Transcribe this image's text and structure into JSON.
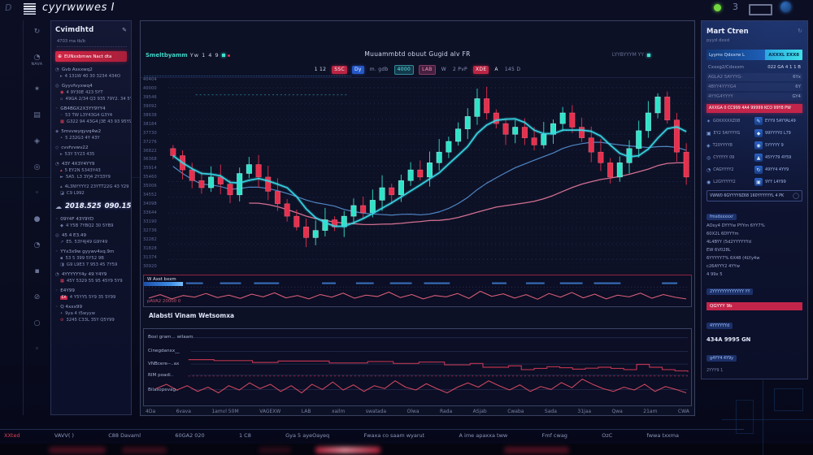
{
  "window": {
    "title": "cyyrwwwes I",
    "corner_glyph": "D",
    "controls": {
      "minimize_glyph": "3"
    }
  },
  "left": {
    "rail_icons": [
      {
        "name": "refresh-icon",
        "glyph": "↻"
      },
      {
        "name": "alert-icon",
        "glyph": "◔",
        "label": "NAVA"
      },
      {
        "name": "spark-icon",
        "glyph": "✶"
      },
      {
        "name": "grid-icon",
        "glyph": "▤"
      },
      {
        "name": "diamond-icon",
        "glyph": "◈"
      },
      {
        "name": "target-icon",
        "glyph": "◎"
      },
      {
        "name": "dot-icon",
        "glyph": "◦"
      },
      {
        "name": "disc-icon",
        "glyph": "●"
      },
      {
        "name": "clock-icon",
        "glyph": "◔"
      },
      {
        "name": "square-icon",
        "glyph": "▪"
      },
      {
        "name": "block-icon",
        "glyph": "⊘"
      },
      {
        "name": "circle-icon",
        "glyph": "○"
      },
      {
        "name": "dot2-icon",
        "glyph": "◦"
      }
    ],
    "panel": {
      "header": "Cvimdhtd",
      "header_icon": "✎",
      "meta": "4703   ma tb/b",
      "notice": {
        "icon": "⊕",
        "text": "EUNxxbmws Nact dta"
      },
      "groups": [
        {
          "icon": "◔",
          "title": "Gvb Asxxwq2",
          "rows": [
            {
              "glyph": "▸",
              "color": "",
              "text": "4 131W  40 30 3234 434O"
            }
          ]
        },
        {
          "icon": "◎",
          "title": "Gyyvfvyxwq4",
          "rows": [
            {
              "glyph": "◉",
              "color": "red",
              "text": "4 9Y30E  423 5YT"
            },
            {
              "glyph": "▫",
              "color": "",
              "text": "49GA 2/34 Q3 935 79Y2. 34 5Y59"
            }
          ]
        },
        {
          "icon": "◦",
          "title": "GB4BGX2X3YY9YY4",
          "rows": [
            {
              "glyph": "◦",
              "color": "",
              "text": "53 TW L3Y43G4 G3Y4"
            },
            {
              "glyph": "▦",
              "color": "red",
              "text": "G322 94 43G4 J3E 43 93 95Y9"
            }
          ]
        },
        {
          "icon": "◈",
          "title": "5mvvwyqyvq4w2",
          "rows": [
            {
              "glyph": "•",
              "color": "",
              "text": "5 232G3   4Y 43Y"
            }
          ]
        },
        {
          "icon": "◇",
          "title": "cvvfvvwv22",
          "rows": [
            {
              "glyph": "▸",
              "color": "",
              "text": "53Y 5Y23 435"
            }
          ]
        },
        {
          "icon": "◔",
          "title": "43Y 4X3Y4YY9",
          "rows": [
            {
              "glyph": "▴",
              "color": "red",
              "text": "5 EY2N  5343Y43"
            },
            {
              "glyph": "►",
              "color": "",
              "text": "5A5. L3 3YJ4 2Y33Y9"
            }
          ]
        },
        {
          "icon": "",
          "title": "",
          "rows": [
            {
              "glyph": "▴",
              "color": "",
              "text": "4L3NYYYY2 23YTT22G 43 Y29"
            },
            {
              "glyph": "◪",
              "color": "",
              "text": "C9  L992"
            }
          ]
        }
      ],
      "totals": {
        "icon_name": "cloud-icon",
        "glyph": "☁",
        "value_a": "2018.525",
        "value_b": "090.156"
      },
      "groups2": [
        {
          "icon": "◦",
          "title": "09Y4F 43Y9YD",
          "rows": [
            {
              "glyph": "◆",
              "color": "",
              "text": "4 Y5B 7YBQ2 30 5YB9"
            }
          ]
        },
        {
          "icon": "◎",
          "title": "45 4 E3.49",
          "rows": [
            {
              "glyph": "↗",
              "color": "",
              "text": "E5. 53Y4J49 G9Y49"
            }
          ]
        },
        {
          "icon": "◦",
          "title": "YYx3x9w gyywv4xq.9m",
          "rows": [
            {
              "glyph": "▪",
              "color": "",
              "text": "53 5 399 5Y52 9B"
            },
            {
              "glyph": "◨",
              "color": "",
              "text": "G9 L9E3 7 953 45 7Y59"
            }
          ]
        },
        {
          "icon": "◔",
          "title": "4YYYYYY4y  49 Y4Y9",
          "rows": [
            {
              "glyph": "▦",
              "color": "red",
              "text": "45Y 5329 55 95 45Y9 5Y9"
            }
          ]
        },
        {
          "icon": "◦",
          "title": "E4Y99",
          "rows": [
            {
              "glyph": "EX",
              "color": "redchip",
              "text": "4 Y5YY5 5Y9 35 5Y99"
            }
          ]
        },
        {
          "icon": "◦",
          "title": "Q 4xxx99",
          "rows": [
            {
              "glyph": "•",
              "color": "",
              "text": "9ya 4 t5wyyw"
            },
            {
              "glyph": "⊘",
              "color": "red",
              "text": "3245 C33L 35Y Q5Y99"
            }
          ]
        }
      ]
    }
  },
  "chart": {
    "header": {
      "pair": "Smeltbyamm",
      "pair_value": "Yw 1 4 9",
      "right_label": "LYYBYYYM YY",
      "title": "Muuammbtd obuut Gugid alv FR"
    },
    "toolbar": [
      {
        "label": "1 12",
        "style": "plain"
      },
      {
        "label": "SSC",
        "style": "red"
      },
      {
        "label": "Dy",
        "style": "blue"
      },
      {
        "label": "m. gdb",
        "style": "dim"
      },
      {
        "label": "4000",
        "style": "teal"
      },
      {
        "label": "LAB",
        "style": "pink"
      },
      {
        "label": "W",
        "style": "dim"
      },
      {
        "label": "2 PvP",
        "style": "dim"
      },
      {
        "label": "XDE",
        "style": "red"
      },
      {
        "label": "A",
        "style": "plain"
      },
      {
        "label": "145 D",
        "style": "dim"
      }
    ],
    "y_ticks": [
      "40404",
      "40000",
      "39546",
      "39092",
      "38638",
      "38184",
      "37730",
      "37276",
      "36822",
      "36368",
      "35914",
      "35460",
      "35006",
      "34552",
      "34098",
      "33644",
      "33190",
      "32736",
      "32282",
      "31828",
      "31374",
      "30920"
    ],
    "x_ticks": [
      "4Da",
      "6vava",
      "1amvl 50M",
      "VAGEXW",
      "LAB",
      "xailm",
      "swatada",
      "Olwa",
      "Rada",
      "ASjab",
      "Cwaba",
      "Sada",
      "31jaa",
      "Qwa",
      "21am",
      "CWA"
    ],
    "closes": [
      60,
      52,
      46,
      42,
      48,
      44,
      38,
      50,
      55,
      48,
      40,
      33,
      26,
      20,
      14,
      18,
      24,
      20,
      26,
      32,
      28,
      35,
      42,
      38,
      46,
      52,
      48,
      56,
      62,
      68,
      75,
      82,
      92,
      84,
      78,
      72,
      76,
      70,
      66,
      72,
      78,
      84,
      76,
      70,
      62,
      56,
      48,
      56,
      64,
      74,
      84,
      93,
      80,
      62,
      48
    ],
    "panel1": {
      "label": "W Axst bxxm",
      "value": "pAVA2 20000 0",
      "osc": [
        0.35,
        0.55,
        0.3,
        0.5,
        0.4,
        0.62,
        0.38,
        0.52,
        0.33,
        0.58,
        0.42,
        0.66,
        0.36,
        0.5,
        0.3,
        0.56,
        0.4,
        0.64,
        0.34,
        0.52,
        0.44,
        0.7,
        0.38,
        0.56,
        0.3,
        0.5,
        0.42,
        0.62,
        0.33,
        0.75,
        0.45,
        0.6,
        0.35,
        0.55,
        0.28,
        0.62,
        0.4,
        0.68,
        0.36,
        0.58,
        0.3,
        0.52,
        0.42,
        0.64,
        0.34,
        0.56,
        0.4,
        0.3
      ]
    },
    "mid_label": "Alabsti Vinam Wetsomxa",
    "panel2": {
      "labels": [
        "Boxi gram... wilaam",
        "Cinegdanxx__",
        "VNBcere--..ax",
        "RIM poadi..",
        "Bilasopevag.."
      ],
      "step": [
        0.92,
        0.92,
        0.88,
        0.88,
        0.88,
        0.8,
        0.8,
        0.86,
        0.86,
        0.86,
        0.86,
        0.78,
        0.78,
        0.78,
        0.84,
        0.84,
        0.76,
        0.76,
        0.82,
        0.82,
        0.7,
        0.7,
        0.76,
        0.6,
        0.6,
        0.66,
        0.5,
        0.55,
        0.62,
        0.58,
        0.52,
        0.56,
        0.6,
        0.55,
        0.5,
        0.72,
        0.6,
        0.5,
        0.45,
        0.4
      ],
      "osc": [
        0.45,
        0.6,
        0.4,
        0.55,
        0.35,
        0.5,
        0.3,
        0.55,
        0.4,
        0.65,
        0.45,
        0.6,
        0.35,
        0.55,
        0.3,
        0.6,
        0.42,
        0.68,
        0.4,
        0.58,
        0.35,
        0.55,
        0.45,
        0.72,
        0.5,
        0.4,
        0.62,
        0.45,
        0.3,
        0.5,
        0.65,
        0.5,
        0.72,
        0.55,
        0.4,
        0.58,
        0.35,
        0.52,
        0.42,
        0.66,
        0.48,
        0.78,
        0.6,
        0.45,
        0.35,
        0.5,
        0.4,
        0.6,
        0.35,
        0.52,
        0.42,
        0.3
      ]
    },
    "colors": {
      "up": "#2fe3c9",
      "down": "#e6304d",
      "ma_fast": "#38d8e6",
      "ma_mid": "#5a9be0",
      "ma_slow": "#e87a9c",
      "osc": "#e8647e"
    }
  },
  "right": {
    "title": "Mart Ctren",
    "subtitle": "pyyd dxxd",
    "corner_icon": "↻",
    "banner_blue": {
      "left": "Lyyms Qdxxrw L",
      "right": "AXXXL EXX8"
    },
    "kv": [
      {
        "k": "Cxxxg2/Cdxxxm",
        "v": "022 GA 4 1 1 B"
      },
      {
        "k": "AGLA2 5AYYYG-",
        "v": "6Yx"
      },
      {
        "k": "4BYY4YYYG4",
        "v": "6Y"
      },
      {
        "k": "4YYG4YYYY",
        "v": "GY4"
      }
    ],
    "banner_red": "AXXGA 0 CC999 4A4 99999 KCO 99Y8 PW",
    "grid": [
      {
        "li": "✶",
        "ll": "G0XXXXXZ08",
        "ri": "✎",
        "rl": "EYY9 5AYYAL49"
      },
      {
        "li": "▣",
        "ll": "EY2 5AYYYYG",
        "ri": "◆",
        "rl": "99YYYY0 L79"
      },
      {
        "li": "◈",
        "ll": "T20YYYY8",
        "ri": "◉",
        "rl": "5YYYYY 9"
      },
      {
        "li": "◎",
        "ll": "CYYYYY 09",
        "ri": "▲",
        "rl": "45YY79 4Y59"
      },
      {
        "li": "◔",
        "ll": "CAGYYYY2",
        "ri": "↻",
        "rl": "49YY4 4YY9"
      },
      {
        "li": "◉",
        "ll": "L2GYYYYY2",
        "ri": "▣",
        "rl": "9YY L4Y99"
      }
    ],
    "search_row": {
      "text": "VWW0 6GYYYY9Z68 160YYYYYYL 4 PK",
      "icon": "◯"
    },
    "chip1": "fmxdxxxxxr",
    "line1": "AOxy4 DYYYw PYYm 6YY7%",
    "line2": "60X2L 6DYYYm",
    "line3": "4L4BYY (5d2YYYYYYd",
    "line4": "EW 6V028L",
    "line5": "6YYYYY7% 6X48 (4LYy4w",
    "line6": "c26AYYY2 4YYw",
    "line7": "4 99x 5",
    "chip2": "2YYYYYYYYYYYYY YY",
    "banner_red2": "QGYYY 9b",
    "chip3": "4YYYYYYd",
    "bold": "434A 9995 GN",
    "chip4": "g4YY4 4Y9y",
    "small": "2YYY9 1"
  },
  "statusbar": {
    "items": [
      {
        "label": "XXted",
        "accent": true
      },
      {
        "label": "VAVV( )",
        "accent": false
      },
      {
        "label": "C88 Davaml",
        "accent": false
      },
      {
        "label": "60GA2 020",
        "accent": false
      },
      {
        "label": "1 C8",
        "accent": false
      },
      {
        "label": "Gya 5 ayeOayeq",
        "accent": false
      },
      {
        "label": "Fwaxa co saam wyarut",
        "accent": false
      },
      {
        "label": "A ime apaxxa tww",
        "accent": false
      },
      {
        "label": "Fmf cwag",
        "accent": false
      },
      {
        "label": "OzC",
        "accent": false
      },
      {
        "label": "fwwa txxma",
        "accent": false
      }
    ]
  }
}
